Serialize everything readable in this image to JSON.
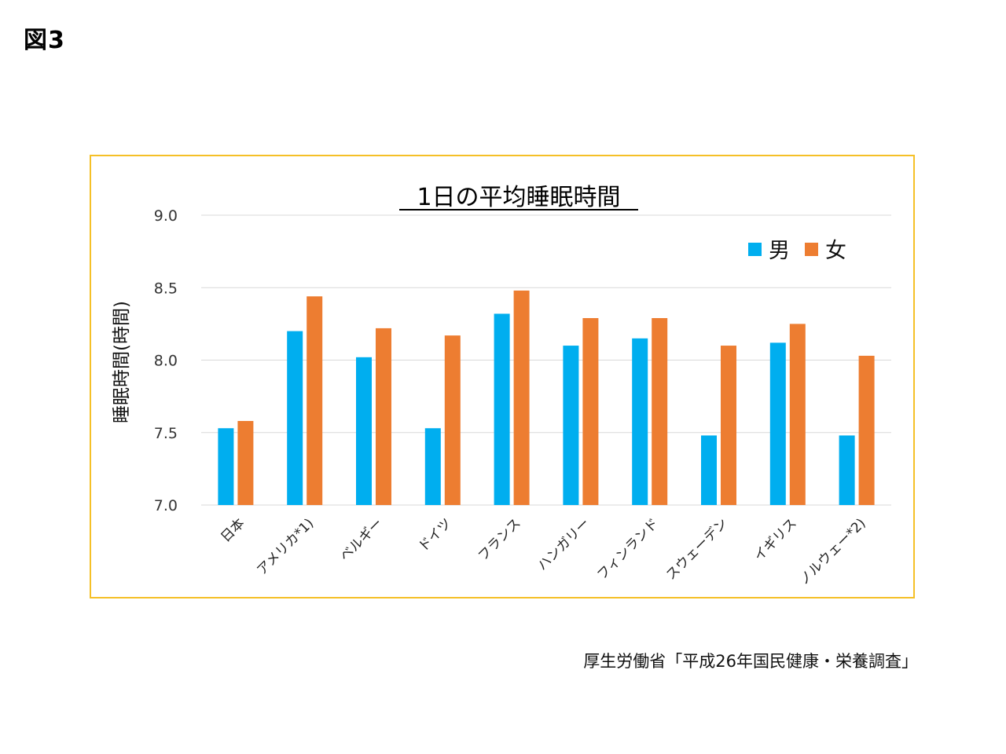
{
  "figure_label": "図3",
  "source": "厚生労働省「平成26年国民健康・栄養調査」",
  "colors": {
    "male": "#00aeef",
    "female": "#ed7d31",
    "frame": "#f5c027",
    "grid": "#d9d9d9"
  },
  "chart_data": {
    "type": "bar",
    "title": "1日の平均睡眠時間",
    "ylabel": "睡眠時間(時間)",
    "xlabel": "",
    "ylim": [
      7.0,
      9.0
    ],
    "yticks": [
      "7.0",
      "7.5",
      "8.0",
      "8.5",
      "9.0"
    ],
    "grid": true,
    "legend_position": "top-right",
    "categories": [
      "日本",
      "アメリカ*1)",
      "ベルギー",
      "ドイツ",
      "フランス",
      "ハンガリー",
      "フィンランド",
      "スウェーデン",
      "イギリス",
      "ノルウェー*2)"
    ],
    "series": [
      {
        "name": "男",
        "color": "#00aeef",
        "values": [
          7.53,
          8.2,
          8.02,
          7.53,
          8.32,
          8.1,
          8.15,
          7.48,
          8.12,
          7.48
        ]
      },
      {
        "name": "女",
        "color": "#ed7d31",
        "values": [
          7.58,
          8.44,
          8.22,
          8.17,
          8.48,
          8.29,
          8.29,
          8.1,
          8.25,
          8.03
        ]
      }
    ]
  }
}
